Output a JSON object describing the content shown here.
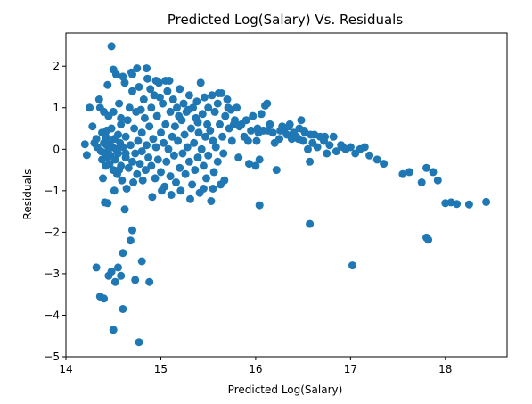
{
  "chart_data": {
    "type": "scatter",
    "title": "Predicted Log(Salary) Vs. Residuals",
    "xlabel": "Predicted Log(Salary)",
    "ylabel": "Residuals",
    "xlim": [
      14.0,
      18.65
    ],
    "ylim": [
      -5.0,
      2.8
    ],
    "xticks": [
      14,
      15,
      16,
      17,
      18
    ],
    "yticks": [
      -5,
      -4,
      -3,
      -2,
      -1,
      0,
      1,
      2
    ],
    "grid": false,
    "marker_color": "#1f77b4",
    "points": [
      [
        14.22,
        -0.14
      ],
      [
        14.25,
        1.0
      ],
      [
        14.3,
        0.15
      ],
      [
        14.32,
        0.25
      ],
      [
        14.33,
        0.05
      ],
      [
        14.35,
        1.2
      ],
      [
        14.36,
        1.0
      ],
      [
        14.37,
        -0.05
      ],
      [
        14.38,
        0.4
      ],
      [
        14.38,
        -0.25
      ],
      [
        14.4,
        0.9
      ],
      [
        14.4,
        0.15
      ],
      [
        14.41,
        -0.1
      ],
      [
        14.42,
        0.3
      ],
      [
        14.42,
        -0.4
      ],
      [
        14.43,
        0.45
      ],
      [
        14.43,
        0.1
      ],
      [
        14.44,
        -0.2
      ],
      [
        14.45,
        0.8
      ],
      [
        14.45,
        0.0
      ],
      [
        14.46,
        -0.35
      ],
      [
        14.47,
        0.2
      ],
      [
        14.47,
        -0.15
      ],
      [
        14.48,
        0.5
      ],
      [
        14.49,
        0.05
      ],
      [
        14.5,
        -0.5
      ],
      [
        14.5,
        0.9
      ],
      [
        14.51,
        0.25
      ],
      [
        14.52,
        -0.25
      ],
      [
        14.53,
        1.8
      ],
      [
        14.53,
        0.0
      ],
      [
        14.54,
        -0.6
      ],
      [
        14.55,
        0.35
      ],
      [
        14.55,
        -0.1
      ],
      [
        14.56,
        1.1
      ],
      [
        14.57,
        0.15
      ],
      [
        14.58,
        -0.4
      ],
      [
        14.58,
        0.6
      ],
      [
        14.59,
        -0.75
      ],
      [
        14.6,
        0.05
      ],
      [
        14.62,
        1.6
      ],
      [
        14.63,
        0.3
      ],
      [
        14.63,
        -0.2
      ],
      [
        14.65,
        0.7
      ],
      [
        14.66,
        -0.45
      ],
      [
        14.67,
        1.0
      ],
      [
        14.68,
        0.1
      ],
      [
        14.7,
        -0.3
      ],
      [
        14.7,
        1.4
      ],
      [
        14.72,
        0.5
      ],
      [
        14.73,
        -0.1
      ],
      [
        14.74,
        0.9
      ],
      [
        14.75,
        -0.6
      ],
      [
        14.76,
        0.2
      ],
      [
        14.77,
        1.5
      ],
      [
        14.78,
        -0.35
      ],
      [
        14.8,
        0.4
      ],
      [
        14.8,
        -0.05
      ],
      [
        14.82,
        1.2
      ],
      [
        14.83,
        0.75
      ],
      [
        14.84,
        -0.5
      ],
      [
        14.85,
        0.1
      ],
      [
        14.86,
        1.7
      ],
      [
        14.87,
        -0.2
      ],
      [
        14.88,
        0.55
      ],
      [
        14.9,
        1.0
      ],
      [
        14.9,
        -0.4
      ],
      [
        14.92,
        0.25
      ],
      [
        14.93,
        1.3
      ],
      [
        14.94,
        -0.7
      ],
      [
        14.95,
        0.05
      ],
      [
        14.96,
        0.8
      ],
      [
        14.97,
        -0.25
      ],
      [
        14.98,
        1.6
      ],
      [
        15.0,
        0.4
      ],
      [
        15.0,
        -0.55
      ],
      [
        15.02,
        1.1
      ],
      [
        15.03,
        0.15
      ],
      [
        15.04,
        -0.9
      ],
      [
        15.05,
        0.6
      ],
      [
        15.06,
        -0.3
      ],
      [
        15.07,
        1.4
      ],
      [
        15.08,
        0.0
      ],
      [
        15.1,
        0.9
      ],
      [
        15.1,
        -0.65
      ],
      [
        15.12,
        0.3
      ],
      [
        15.13,
        1.2
      ],
      [
        15.14,
        -0.15
      ],
      [
        15.15,
        0.55
      ],
      [
        15.16,
        -0.8
      ],
      [
        15.17,
        1.0
      ],
      [
        15.18,
        0.2
      ],
      [
        15.2,
        -0.45
      ],
      [
        15.2,
        1.45
      ],
      [
        15.22,
        0.7
      ],
      [
        15.23,
        -0.1
      ],
      [
        15.24,
        1.1
      ],
      [
        15.25,
        0.35
      ],
      [
        15.26,
        -0.6
      ],
      [
        15.27,
        0.9
      ],
      [
        15.28,
        0.05
      ],
      [
        15.3,
        1.3
      ],
      [
        15.3,
        -0.3
      ],
      [
        15.32,
        0.5
      ],
      [
        15.33,
        -0.85
      ],
      [
        15.34,
        1.0
      ],
      [
        15.35,
        0.15
      ],
      [
        15.36,
        -0.5
      ],
      [
        15.37,
        0.75
      ],
      [
        15.38,
        1.15
      ],
      [
        15.39,
        -0.2
      ],
      [
        15.4,
        0.4
      ],
      [
        15.41,
        -1.05
      ],
      [
        15.42,
        1.6
      ],
      [
        15.43,
        0.0
      ],
      [
        15.44,
        0.85
      ],
      [
        15.45,
        -0.4
      ],
      [
        15.46,
        1.25
      ],
      [
        15.47,
        0.3
      ],
      [
        15.48,
        -0.7
      ],
      [
        15.49,
        0.6
      ],
      [
        15.5,
        1.0
      ],
      [
        15.5,
        -0.15
      ],
      [
        15.52,
        0.45
      ],
      [
        15.53,
        -1.25
      ],
      [
        15.54,
        1.3
      ],
      [
        15.55,
        0.2
      ],
      [
        15.56,
        -0.55
      ],
      [
        15.57,
        0.9
      ],
      [
        15.58,
        0.05
      ],
      [
        15.6,
        1.1
      ],
      [
        15.6,
        -0.3
      ],
      [
        15.62,
        0.6
      ],
      [
        15.63,
        -0.85
      ],
      [
        15.64,
        1.35
      ],
      [
        15.65,
        0.3
      ],
      [
        15.66,
        -0.1
      ],
      [
        15.68,
        0.8
      ],
      [
        15.7,
        1.2
      ],
      [
        15.72,
        0.5
      ],
      [
        15.74,
        0.95
      ],
      [
        15.75,
        0.2
      ],
      [
        15.77,
        0.6
      ],
      [
        15.8,
        1.0
      ],
      [
        15.82,
        -0.2
      ],
      [
        15.85,
        0.6
      ],
      [
        15.88,
        0.3
      ],
      [
        15.9,
        0.7
      ],
      [
        15.93,
        -0.35
      ],
      [
        15.95,
        0.45
      ],
      [
        15.97,
        0.8
      ],
      [
        16.0,
        -0.4
      ],
      [
        16.02,
        0.5
      ],
      [
        16.04,
        -0.25
      ],
      [
        16.06,
        0.85
      ],
      [
        16.08,
        0.45
      ],
      [
        16.1,
        1.05
      ],
      [
        16.12,
        1.1
      ],
      [
        16.15,
        0.6
      ],
      [
        16.18,
        0.4
      ],
      [
        16.2,
        0.15
      ],
      [
        16.22,
        -0.5
      ],
      [
        16.25,
        0.25
      ],
      [
        16.28,
        0.55
      ],
      [
        16.3,
        0.45
      ],
      [
        16.33,
        0.35
      ],
      [
        16.36,
        0.6
      ],
      [
        16.38,
        0.25
      ],
      [
        16.4,
        0.4
      ],
      [
        16.43,
        0.3
      ],
      [
        16.46,
        0.5
      ],
      [
        16.48,
        0.7
      ],
      [
        16.5,
        0.2
      ],
      [
        16.52,
        0.4
      ],
      [
        16.55,
        0.0
      ],
      [
        16.57,
        -0.3
      ],
      [
        16.6,
        0.15
      ],
      [
        16.62,
        0.35
      ],
      [
        16.65,
        0.05
      ],
      [
        16.68,
        0.3
      ],
      [
        16.72,
        0.2
      ],
      [
        16.75,
        -0.1
      ],
      [
        16.78,
        0.1
      ],
      [
        16.82,
        0.3
      ],
      [
        16.85,
        -0.05
      ],
      [
        16.9,
        0.1
      ],
      [
        16.95,
        0.0
      ],
      [
        17.0,
        0.05
      ],
      [
        17.05,
        -0.1
      ],
      [
        17.1,
        0.0
      ],
      [
        17.15,
        0.05
      ],
      [
        17.2,
        -0.15
      ],
      [
        17.28,
        -0.25
      ],
      [
        17.35,
        -0.35
      ],
      [
        17.55,
        -0.6
      ],
      [
        17.62,
        -0.55
      ],
      [
        17.75,
        -0.8
      ],
      [
        17.8,
        -0.45
      ],
      [
        17.87,
        -0.55
      ],
      [
        17.92,
        -0.75
      ],
      [
        18.06,
        -1.28
      ],
      [
        18.12,
        -1.32
      ],
      [
        18.25,
        -1.33
      ],
      [
        18.43,
        -1.27
      ],
      [
        14.2,
        0.12
      ],
      [
        14.28,
        0.55
      ],
      [
        14.39,
        -0.7
      ],
      [
        14.44,
        1.55
      ],
      [
        14.51,
        -1.0
      ],
      [
        14.58,
        0.75
      ],
      [
        14.64,
        -0.95
      ],
      [
        14.69,
        1.85
      ],
      [
        14.71,
        -0.8
      ],
      [
        14.79,
        0.95
      ],
      [
        14.81,
        -0.75
      ],
      [
        14.89,
        1.45
      ],
      [
        14.91,
        -1.15
      ],
      [
        14.99,
        1.25
      ],
      [
        15.01,
        -1.0
      ],
      [
        15.09,
        1.65
      ],
      [
        15.11,
        -1.1
      ],
      [
        15.19,
        0.8
      ],
      [
        15.21,
        -1.0
      ],
      [
        15.29,
        0.95
      ],
      [
        15.31,
        -1.2
      ],
      [
        15.39,
        0.65
      ],
      [
        15.45,
        -0.95
      ],
      [
        15.55,
        -0.95
      ],
      [
        15.61,
        1.35
      ],
      [
        15.67,
        -0.75
      ],
      [
        15.71,
        1.0
      ],
      [
        15.78,
        0.7
      ],
      [
        15.83,
        0.55
      ],
      [
        15.92,
        0.2
      ],
      [
        16.01,
        0.2
      ],
      [
        16.03,
        0.4
      ],
      [
        16.13,
        0.45
      ],
      [
        16.26,
        0.45
      ],
      [
        16.35,
        0.55
      ],
      [
        16.45,
        0.25
      ],
      [
        16.51,
        0.45
      ],
      [
        16.58,
        0.35
      ],
      [
        16.73,
        0.3
      ],
      [
        16.92,
        0.05
      ],
      [
        14.32,
        -2.85
      ],
      [
        14.36,
        -3.55
      ],
      [
        14.4,
        -3.6
      ],
      [
        14.45,
        -3.05
      ],
      [
        14.48,
        -2.95
      ],
      [
        14.5,
        -4.35
      ],
      [
        14.52,
        -3.2
      ],
      [
        14.55,
        -2.85
      ],
      [
        14.58,
        -3.05
      ],
      [
        14.6,
        -2.5
      ],
      [
        14.6,
        -3.85
      ],
      [
        14.62,
        -1.45
      ],
      [
        14.68,
        -2.2
      ],
      [
        14.7,
        -1.95
      ],
      [
        14.73,
        -3.15
      ],
      [
        14.77,
        -4.65
      ],
      [
        14.8,
        -2.7
      ],
      [
        14.88,
        -3.2
      ],
      [
        14.41,
        -1.28
      ],
      [
        14.44,
        -1.3
      ],
      [
        14.56,
        -0.5
      ],
      [
        14.63,
        -0.1
      ],
      [
        16.04,
        -1.35
      ],
      [
        16.57,
        -1.8
      ],
      [
        17.02,
        -2.8
      ],
      [
        17.8,
        -2.13
      ],
      [
        17.82,
        -2.18
      ],
      [
        18.0,
        -1.3
      ],
      [
        14.48,
        2.48
      ],
      [
        14.5,
        1.92
      ],
      [
        14.6,
        1.75
      ],
      [
        14.7,
        1.8
      ],
      [
        14.75,
        1.95
      ],
      [
        14.85,
        1.95
      ],
      [
        14.95,
        1.65
      ],
      [
        15.05,
        1.65
      ]
    ]
  }
}
